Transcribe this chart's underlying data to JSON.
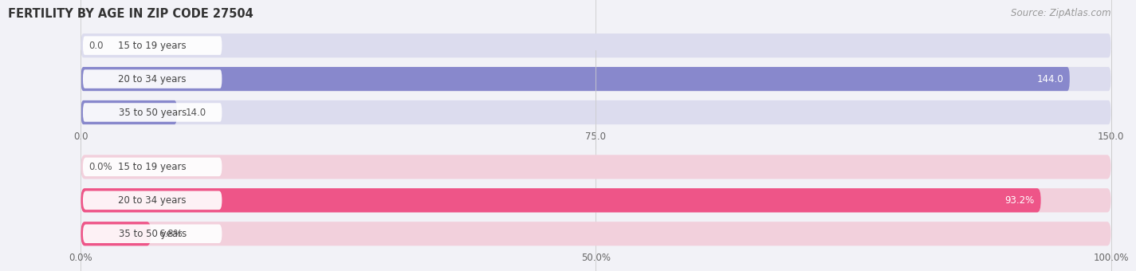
{
  "title": "FERTILITY BY AGE IN ZIP CODE 27504",
  "source": "Source: ZipAtlas.com",
  "background_color": "#f2f2f7",
  "top_chart": {
    "categories": [
      "15 to 19 years",
      "20 to 34 years",
      "35 to 50 years"
    ],
    "values": [
      0.0,
      144.0,
      14.0
    ],
    "max_value": 150.0,
    "tick_values": [
      0.0,
      75.0,
      150.0
    ],
    "tick_labels": [
      "0.0",
      "75.0",
      "150.0"
    ],
    "bar_color": "#8888cc",
    "bar_bg_color": "#dcdcee",
    "cat_label_bg": "#e8e8f4"
  },
  "bottom_chart": {
    "categories": [
      "15 to 19 years",
      "20 to 34 years",
      "35 to 50 years"
    ],
    "values": [
      0.0,
      93.2,
      6.8
    ],
    "max_value": 100.0,
    "tick_values": [
      0.0,
      50.0,
      100.0
    ],
    "tick_labels": [
      "0.0%",
      "50.0%",
      "100.0%"
    ],
    "bar_color": "#ee5588",
    "bar_bg_color": "#f2d0dc",
    "cat_label_bg": "#f5dde8"
  },
  "title_fontsize": 10.5,
  "source_fontsize": 8.5,
  "label_fontsize": 8.5,
  "tick_fontsize": 8.5,
  "category_fontsize": 8.5
}
